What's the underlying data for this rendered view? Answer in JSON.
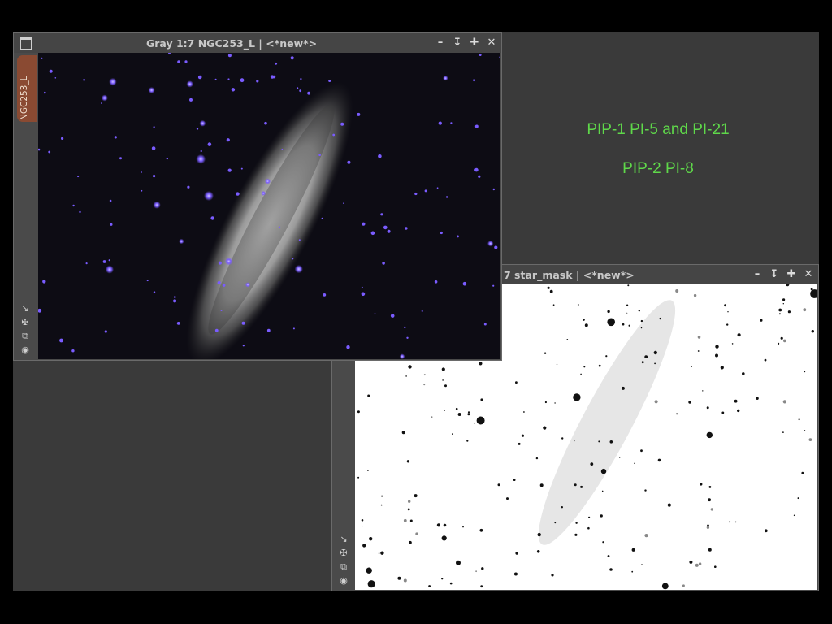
{
  "window1": {
    "title": "Gray 1:7 NGC253_L | <*new*>",
    "tab_label": "NGC253_L",
    "icons": [
      "minimize-icon",
      "shade-icon",
      "maximize-icon",
      "close-icon"
    ]
  },
  "window2": {
    "title": "7 star_mask | <*new*>",
    "icons": [
      "minimize-icon",
      "shade-icon",
      "maximize-icon",
      "close-icon"
    ]
  },
  "tools": [
    "zoom-to-fit-icon",
    "pan-icon",
    "preview-icon",
    "readout-icon"
  ],
  "notes": {
    "line1": "PIP-1 PI-5 and PI-21",
    "line2": "PIP-2 PI-8",
    "color": "#5fd84a"
  },
  "colors": {
    "workspace": "#3a3a3a",
    "window_border": "#6a6a6a",
    "star_tint": "#7a5cff",
    "tab": "#8a4a32"
  }
}
